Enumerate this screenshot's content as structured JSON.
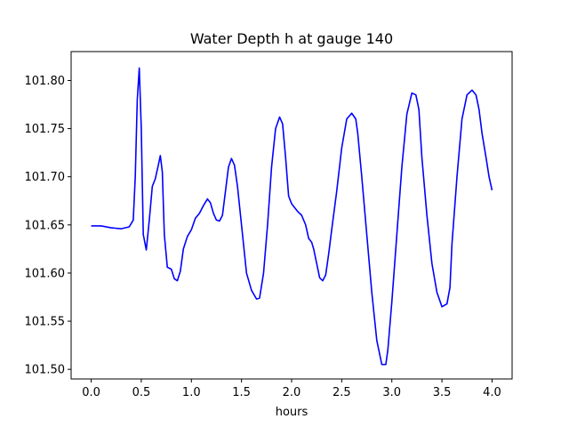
{
  "chart_data": {
    "type": "line",
    "title": "Water Depth h at gauge 140",
    "xlabel": "hours",
    "ylabel": "",
    "xlim": [
      -0.2,
      4.2
    ],
    "ylim": [
      101.49,
      101.83
    ],
    "grid": false,
    "x_ticks": [
      0.0,
      0.5,
      1.0,
      1.5,
      2.0,
      2.5,
      3.0,
      3.5,
      4.0
    ],
    "x_tick_labels": [
      "0.0",
      "0.5",
      "1.0",
      "1.5",
      "2.0",
      "2.5",
      "3.0",
      "3.5",
      "4.0"
    ],
    "y_ticks": [
      101.5,
      101.55,
      101.6,
      101.65,
      101.7,
      101.75,
      101.8
    ],
    "y_tick_labels": [
      "101.50",
      "101.55",
      "101.60",
      "101.65",
      "101.70",
      "101.75",
      "101.80"
    ],
    "series": [
      {
        "color": "#0000ff",
        "x": [
          0.0,
          0.1,
          0.2,
          0.3,
          0.38,
          0.42,
          0.44,
          0.46,
          0.48,
          0.5,
          0.52,
          0.55,
          0.58,
          0.61,
          0.64,
          0.67,
          0.69,
          0.71,
          0.73,
          0.76,
          0.78,
          0.8,
          0.83,
          0.86,
          0.89,
          0.92,
          0.96,
          1.0,
          1.04,
          1.08,
          1.12,
          1.16,
          1.19,
          1.22,
          1.25,
          1.28,
          1.31,
          1.34,
          1.37,
          1.4,
          1.43,
          1.46,
          1.5,
          1.55,
          1.6,
          1.65,
          1.68,
          1.72,
          1.76,
          1.8,
          1.84,
          1.88,
          1.91,
          1.94,
          1.97,
          2.0,
          2.03,
          2.06,
          2.1,
          2.14,
          2.17,
          2.2,
          2.22,
          2.25,
          2.28,
          2.31,
          2.34,
          2.37,
          2.4,
          2.45,
          2.5,
          2.55,
          2.6,
          2.64,
          2.66,
          2.7,
          2.75,
          2.8,
          2.85,
          2.9,
          2.94,
          2.96,
          3.0,
          3.05,
          3.1,
          3.15,
          3.2,
          3.24,
          3.27,
          3.3,
          3.35,
          3.4,
          3.45,
          3.5,
          3.55,
          3.58,
          3.6,
          3.65,
          3.7,
          3.75,
          3.8,
          3.84,
          3.87,
          3.9,
          3.94,
          3.97,
          4.0
        ],
        "y": [
          101.649,
          101.649,
          101.647,
          101.646,
          101.648,
          101.655,
          101.7,
          101.78,
          101.813,
          101.75,
          101.64,
          101.624,
          101.655,
          101.69,
          101.698,
          101.712,
          101.722,
          101.705,
          101.64,
          101.606,
          101.605,
          101.604,
          101.594,
          101.592,
          101.602,
          101.625,
          101.638,
          101.645,
          101.657,
          101.662,
          101.67,
          101.677,
          101.673,
          101.662,
          101.655,
          101.654,
          101.66,
          101.685,
          101.71,
          101.719,
          101.712,
          101.69,
          101.65,
          101.6,
          101.582,
          101.573,
          101.574,
          101.6,
          101.65,
          101.71,
          101.75,
          101.762,
          101.755,
          101.72,
          101.68,
          101.672,
          101.668,
          101.664,
          101.66,
          101.65,
          101.636,
          101.632,
          101.625,
          101.61,
          101.595,
          101.592,
          101.598,
          101.62,
          101.645,
          101.685,
          101.73,
          101.76,
          101.766,
          101.76,
          101.745,
          101.7,
          101.64,
          101.58,
          101.53,
          101.505,
          101.505,
          101.52,
          101.57,
          101.64,
          101.71,
          101.765,
          101.787,
          101.785,
          101.77,
          101.72,
          101.66,
          101.61,
          101.58,
          101.565,
          101.568,
          101.585,
          101.63,
          101.7,
          101.76,
          101.785,
          101.79,
          101.785,
          101.77,
          101.745,
          101.72,
          101.7,
          101.686
        ]
      }
    ]
  }
}
